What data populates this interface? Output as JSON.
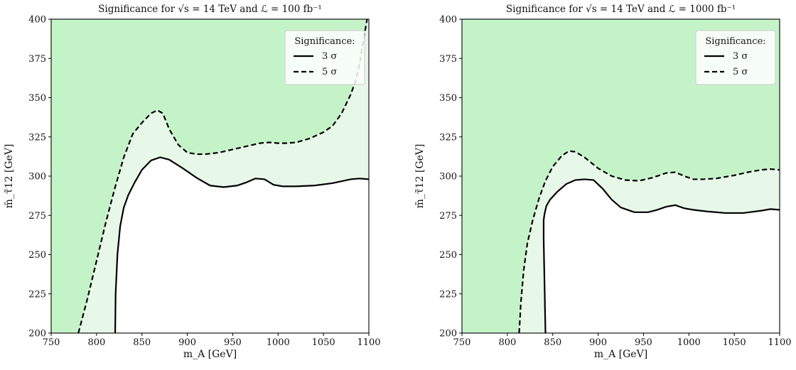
{
  "chart_data": [
    {
      "type": "line",
      "title": "Significance for √s = 14 TeV and ℒ = 100 fb⁻¹",
      "xlabel": "m_A [GeV]",
      "ylabel": "m̄_τ̃12 [GeV]",
      "xlim": [
        750,
        1100
      ],
      "ylim": [
        200,
        400
      ],
      "xticks": [
        "750",
        "800",
        "850",
        "900",
        "950",
        "1000",
        "1050",
        "1100"
      ],
      "yticks": [
        "200",
        "225",
        "250",
        "275",
        "300",
        "325",
        "350",
        "375",
        "400"
      ],
      "grid": false,
      "legend": {
        "title": "Significance:",
        "placement": "top-right"
      },
      "fill_colors": {
        "above_5sigma": "#c5f3c8",
        "between": "#e8f8e8",
        "below_3sigma": "#ffffff"
      },
      "series": [
        {
          "name": "3 σ",
          "style": "solid",
          "x": [
            820.5,
            821,
            823,
            826,
            830,
            835,
            842,
            850,
            860,
            870,
            880,
            895,
            910,
            925,
            940,
            955,
            965,
            975,
            985,
            995,
            1005,
            1020,
            1040,
            1060,
            1080,
            1090,
            1100
          ],
          "y": [
            200,
            225,
            250,
            268,
            280,
            288,
            296,
            304,
            310,
            312,
            310.5,
            305,
            299,
            294,
            293,
            294,
            296,
            298.5,
            298,
            294.5,
            293.5,
            293.5,
            294,
            295.5,
            298,
            298.5,
            298
          ]
        },
        {
          "name": "5 σ",
          "style": "dashed",
          "x": [
            780,
            790,
            800,
            810,
            820,
            830,
            840,
            850,
            860,
            867,
            873,
            880,
            890,
            900,
            910,
            920,
            935,
            950,
            965,
            980,
            990,
            1000,
            1010,
            1020,
            1035,
            1050,
            1060,
            1070,
            1080,
            1085,
            1090,
            1093,
            1096,
            1098
          ],
          "y": [
            200,
            222,
            246,
            270,
            292,
            312,
            327,
            334,
            340,
            342,
            340,
            330,
            320,
            315,
            314,
            314,
            315,
            317,
            319,
            321,
            321.5,
            321,
            321,
            321.5,
            324,
            328,
            332,
            340,
            352,
            360,
            372,
            383,
            393,
            400
          ]
        }
      ]
    },
    {
      "type": "line",
      "title": "Significance for √s = 14 TeV and ℒ = 1000 fb⁻¹",
      "xlabel": "m_A [GeV]",
      "ylabel": "m̄_τ̃12 [GeV]",
      "xlim": [
        750,
        1100
      ],
      "ylim": [
        200,
        400
      ],
      "xticks": [
        "750",
        "800",
        "850",
        "900",
        "950",
        "1000",
        "1050",
        "1100"
      ],
      "yticks": [
        "200",
        "225",
        "250",
        "275",
        "300",
        "325",
        "350",
        "375",
        "400"
      ],
      "grid": false,
      "legend": {
        "title": "Significance:",
        "placement": "top-right"
      },
      "fill_colors": {
        "above_5sigma": "#c5f3c8",
        "between": "#e8f8e8",
        "below_3sigma": "#ffffff"
      },
      "series": [
        {
          "name": "3 σ",
          "style": "solid",
          "x": [
            842,
            841.5,
            841,
            840.5,
            840,
            840,
            841,
            843,
            847,
            855,
            865,
            875,
            885,
            895,
            905,
            915,
            925,
            940,
            955,
            965,
            975,
            985,
            995,
            1005,
            1020,
            1040,
            1060,
            1080,
            1090,
            1100
          ],
          "y": [
            200,
            215,
            230,
            245,
            260,
            272,
            276,
            281,
            285,
            290,
            295,
            297.5,
            298,
            297.5,
            292,
            285,
            280,
            277,
            277,
            278.5,
            280.5,
            281.5,
            279.5,
            278.5,
            277.5,
            276.5,
            276.5,
            278,
            279,
            278.5
          ]
        },
        {
          "name": "5 σ",
          "style": "dashed",
          "x": [
            813,
            815,
            818,
            822,
            828,
            835,
            842,
            850,
            860,
            868,
            875,
            885,
            900,
            915,
            930,
            945,
            960,
            975,
            985,
            995,
            1005,
            1015,
            1030,
            1050,
            1065,
            1080,
            1090,
            1100
          ],
          "y": [
            200,
            220,
            240,
            257,
            272,
            286,
            297,
            306,
            313,
            316,
            315.5,
            312,
            305,
            300,
            297.5,
            297,
            299,
            302,
            302.5,
            300,
            298,
            298,
            298.5,
            300.5,
            302.5,
            304,
            304.5,
            304
          ]
        }
      ]
    }
  ]
}
